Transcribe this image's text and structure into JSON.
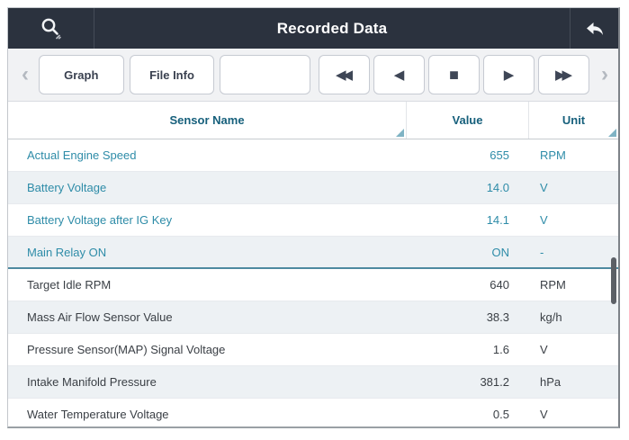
{
  "header": {
    "title": "Recorded Data"
  },
  "toolbar": {
    "scroll_left_glyph": "‹",
    "scroll_right_glyph": "›",
    "graph_label": "Graph",
    "file_info_label": "File Info",
    "empty_label": "",
    "media_buttons": [
      {
        "name": "rewind-button",
        "icon": "rewind-icon",
        "glyph": "◀◀",
        "style": "double"
      },
      {
        "name": "step-back-button",
        "icon": "play-reverse-icon",
        "glyph": "◀",
        "style": "single"
      },
      {
        "name": "stop-button",
        "icon": "stop-icon",
        "glyph": "■",
        "style": "square"
      },
      {
        "name": "play-button",
        "icon": "play-icon",
        "glyph": "▶",
        "style": "single"
      },
      {
        "name": "fast-forward-button",
        "icon": "fast-forward-icon",
        "glyph": "▶▶",
        "style": "double"
      }
    ]
  },
  "table": {
    "columns": [
      {
        "label": "Sensor Name"
      },
      {
        "label": "Value"
      },
      {
        "label": "Unit"
      }
    ],
    "rows": [
      {
        "name": "Actual Engine Speed",
        "value": "655",
        "unit": "RPM",
        "selected": true,
        "divider_after": false
      },
      {
        "name": "Battery Voltage",
        "value": "14.0",
        "unit": "V",
        "selected": true,
        "divider_after": false
      },
      {
        "name": "Battery Voltage after IG Key",
        "value": "14.1",
        "unit": "V",
        "selected": true,
        "divider_after": false
      },
      {
        "name": "Main Relay ON",
        "value": "ON",
        "unit": "-",
        "selected": true,
        "divider_after": true
      },
      {
        "name": "Target Idle RPM",
        "value": "640",
        "unit": "RPM",
        "selected": false,
        "divider_after": false
      },
      {
        "name": "Mass Air Flow Sensor Value",
        "value": "38.3",
        "unit": "kg/h",
        "selected": false,
        "divider_after": false
      },
      {
        "name": "Pressure Sensor(MAP) Signal Voltage",
        "value": "1.6",
        "unit": "V",
        "selected": false,
        "divider_after": false
      },
      {
        "name": "Intake Manifold Pressure",
        "value": "381.2",
        "unit": "hPa",
        "selected": false,
        "divider_after": false
      },
      {
        "name": "Water Temperature Voltage",
        "value": "0.5",
        "unit": "V",
        "selected": false,
        "divider_after": false
      }
    ]
  },
  "colors": {
    "titlebar_bg": "#2B323E",
    "accent_teal": "#2E8CA8",
    "header_text": "#17607C",
    "row_text": "#3A3F45",
    "alt_row_bg": "#EDF1F4",
    "divider_teal": "#4E8AA0"
  }
}
